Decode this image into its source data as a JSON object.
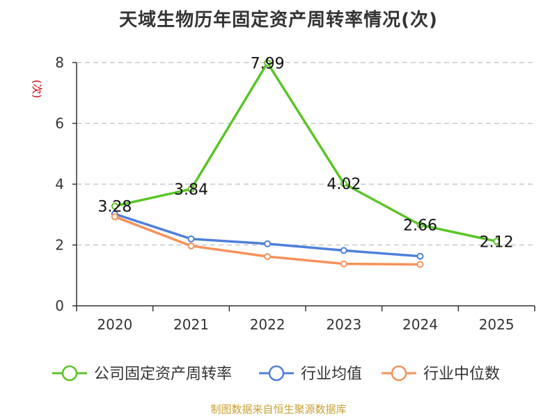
{
  "title": "天域生物历年固定资产周转率情况(次)",
  "source": "制图数据来自恒生聚源数据库",
  "chart_data": {
    "type": "line",
    "title": "天域生物历年固定资产周转率情况(次)",
    "ylabel": "(次)",
    "xlabel": "",
    "categories": [
      "2020",
      "2021",
      "2022",
      "2023",
      "2024",
      "2025"
    ],
    "ylim": [
      0,
      8
    ],
    "yticks": [
      0,
      2,
      4,
      6,
      8
    ],
    "grid": true,
    "legend_position": "bottom",
    "series": [
      {
        "name": "公司固定资产周转率",
        "color": "#5bc427",
        "values": [
          3.28,
          3.84,
          7.99,
          4.02,
          2.66,
          2.12
        ],
        "labels": [
          "3.28",
          "3.84",
          "7.99",
          "4.02",
          "2.66",
          "2.12"
        ],
        "show_labels": true
      },
      {
        "name": "行业均值",
        "color": "#4f7fdb",
        "values": [
          3.02,
          2.2,
          2.04,
          1.82,
          1.63,
          null
        ],
        "show_labels": false
      },
      {
        "name": "行业中位数",
        "color": "#f5925a",
        "values": [
          2.93,
          1.97,
          1.62,
          1.38,
          1.36,
          null
        ],
        "show_labels": false
      }
    ]
  }
}
